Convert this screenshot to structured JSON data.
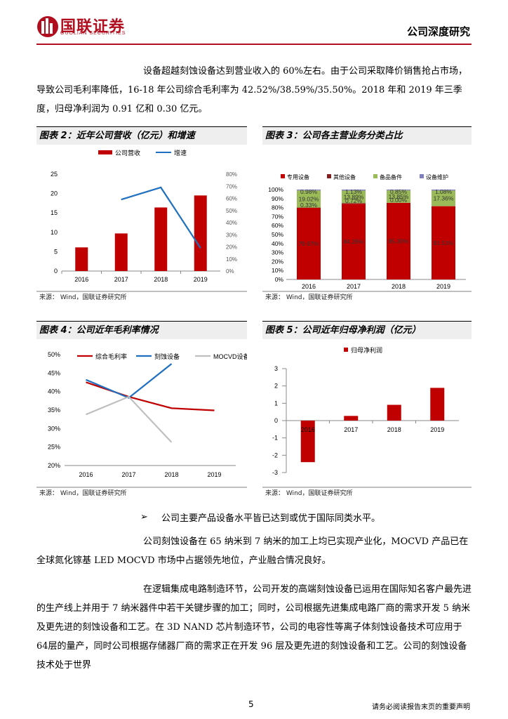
{
  "header": {
    "logo_name": "国联证券",
    "logo_sub": "GUOLIAN SECURITIES",
    "report_type": "公司深度研究",
    "brand_color": "#b10f1f"
  },
  "intro_paragraph": "设备超越刻蚀设备达到营业收入的 60%左右。由于公司采取降价销售抢占市场，导致公司毛利率降低，16-18 年公司综合毛利率为 42.52%/38.59%/35.50%。2018 年和 2019 年三季度，归母净利润为 0.91 亿和 0.30 亿元。",
  "figures": {
    "fig2": {
      "title": "图表 2：近年公司营收（亿元）和增速",
      "source": "来源： Wind，国联证券研究所"
    },
    "fig3": {
      "title": "图表 3：公司各主营业务分类占比",
      "source": "来源： Wind，国联证券研究所"
    },
    "fig4": {
      "title": "图表 4：公司近年毛利率情况",
      "source": "来源： Wind，国联证券研究所"
    },
    "fig5": {
      "title": "图表 5：公司近年归母净利润（亿元）",
      "source": "来源： Wind，国联证券研究所"
    }
  },
  "chart_data": [
    {
      "id": "fig2",
      "type": "bar",
      "categories": [
        "2016",
        "2017",
        "2018",
        "2019"
      ],
      "series": [
        {
          "name": "公司营收",
          "kind": "bar",
          "axis": "left",
          "color": "#c00000",
          "values": [
            6.1,
            9.7,
            16.4,
            19.5
          ]
        },
        {
          "name": "增速",
          "kind": "line",
          "axis": "right",
          "color": "#1f6fc1",
          "values": [
            null,
            59,
            69,
            19
          ]
        }
      ],
      "left_axis": {
        "min": 0,
        "max": 25,
        "ticks": [
          "0",
          "5",
          "10",
          "15",
          "20",
          "25"
        ]
      },
      "right_axis": {
        "min": 0,
        "max": 80,
        "ticks": [
          "0%",
          "10%",
          "20%",
          "30%",
          "40%",
          "50%",
          "60%",
          "70%",
          "80%"
        ]
      },
      "legend": "top"
    },
    {
      "id": "fig3",
      "type": "bar",
      "stacked": true,
      "categories": [
        "2016",
        "2017",
        "2018",
        "2019"
      ],
      "series": [
        {
          "name": "专用设备",
          "color": "#c00000",
          "values": [
            79.67,
            84.26,
            85.3,
            81.51
          ],
          "labels": [
            "79.67%",
            "84.26%",
            "85.30%",
            "81.51%"
          ]
        },
        {
          "name": "其他设备",
          "color": "#7f1f1f",
          "values": [
            0.33,
            0.72,
            0.0,
            0.05
          ],
          "labels": [
            "0.33%",
            "0.72%",
            "0.00%",
            ""
          ]
        },
        {
          "name": "备品备件",
          "color": "#9bbb59",
          "values": [
            19.02,
            13.89,
            13.85,
            17.36
          ],
          "labels": [
            "19.02%",
            "13.89%",
            "13.85%",
            "17.36%"
          ]
        },
        {
          "name": "设备维护",
          "color": "#7f7fbf",
          "values": [
            0.98,
            1.13,
            0.85,
            1.08
          ],
          "labels": [
            "0.98%",
            "1.13%",
            "0.85%",
            "1.08%"
          ]
        }
      ],
      "y_axis": {
        "min": 0,
        "max": 100,
        "ticks": [
          "0%",
          "10%",
          "20%",
          "30%",
          "40%",
          "50%",
          "60%",
          "70%",
          "80%",
          "90%",
          "100%"
        ]
      },
      "legend": "top"
    },
    {
      "id": "fig4",
      "type": "line",
      "categories": [
        "2016",
        "2017",
        "2018",
        "2019"
      ],
      "series": [
        {
          "name": "综合毛利率",
          "color": "#c00000",
          "values": [
            42.52,
            38.59,
            35.5,
            34.9
          ]
        },
        {
          "name": "刻蚀设备",
          "color": "#1f6fc1",
          "values": [
            43.2,
            38.3,
            47.5,
            null
          ]
        },
        {
          "name": "MOCVD设备",
          "color": "#bfbfbf",
          "values": [
            33.8,
            38.6,
            26.3,
            null
          ]
        }
      ],
      "y_axis": {
        "min": 20,
        "max": 50,
        "ticks": [
          "20%",
          "25%",
          "30%",
          "35%",
          "40%",
          "45%",
          "50%"
        ]
      },
      "legend": "top"
    },
    {
      "id": "fig5",
      "type": "bar",
      "categories": [
        "2016",
        "2017",
        "2018",
        "2019"
      ],
      "series": [
        {
          "name": "归母净利润",
          "color": "#c00000",
          "values": [
            -2.4,
            0.27,
            0.91,
            1.89
          ]
        }
      ],
      "y_axis": {
        "min": -3,
        "max": 3,
        "ticks": [
          "-3",
          "-2",
          "-1",
          "0",
          "1",
          "2",
          "3"
        ]
      },
      "category_labels": [
        "2016",
        "2017",
        "2018",
        "2019"
      ],
      "legend": "top"
    }
  ],
  "bullet_text": "公司主要产品设备水平皆已达到或优于国际同类水平。",
  "para2": "公司刻蚀设备在 65 纳米到 7 纳米的加工上均已实现产业化，MOCVD 产品已在全球氮化镓基 LED MOCVD 市场中占据领先地位，产业融合情况良好。",
  "para3": "在逻辑集成电路制造环节，公司开发的高端刻蚀设备已运用在国际知名客户最先进的生产线上并用于 7 纳米器件中若干关键步骤的加工；同时，公司根据先进集成电路厂商的需求开发 5 纳米及更先进的刻蚀设备和工艺。在 3D NAND 芯片制造环节，公司的电容性等离子体刻蚀设备技术可应用于 64层的量产，同时公司根据存储器厂商的需求正在开发 96 层及更先进的刻蚀设备和工艺。公司的刻蚀设备技术处于世界",
  "footer": {
    "page": "5",
    "disclaimer": "请务必阅读报告末页的重要声明"
  }
}
